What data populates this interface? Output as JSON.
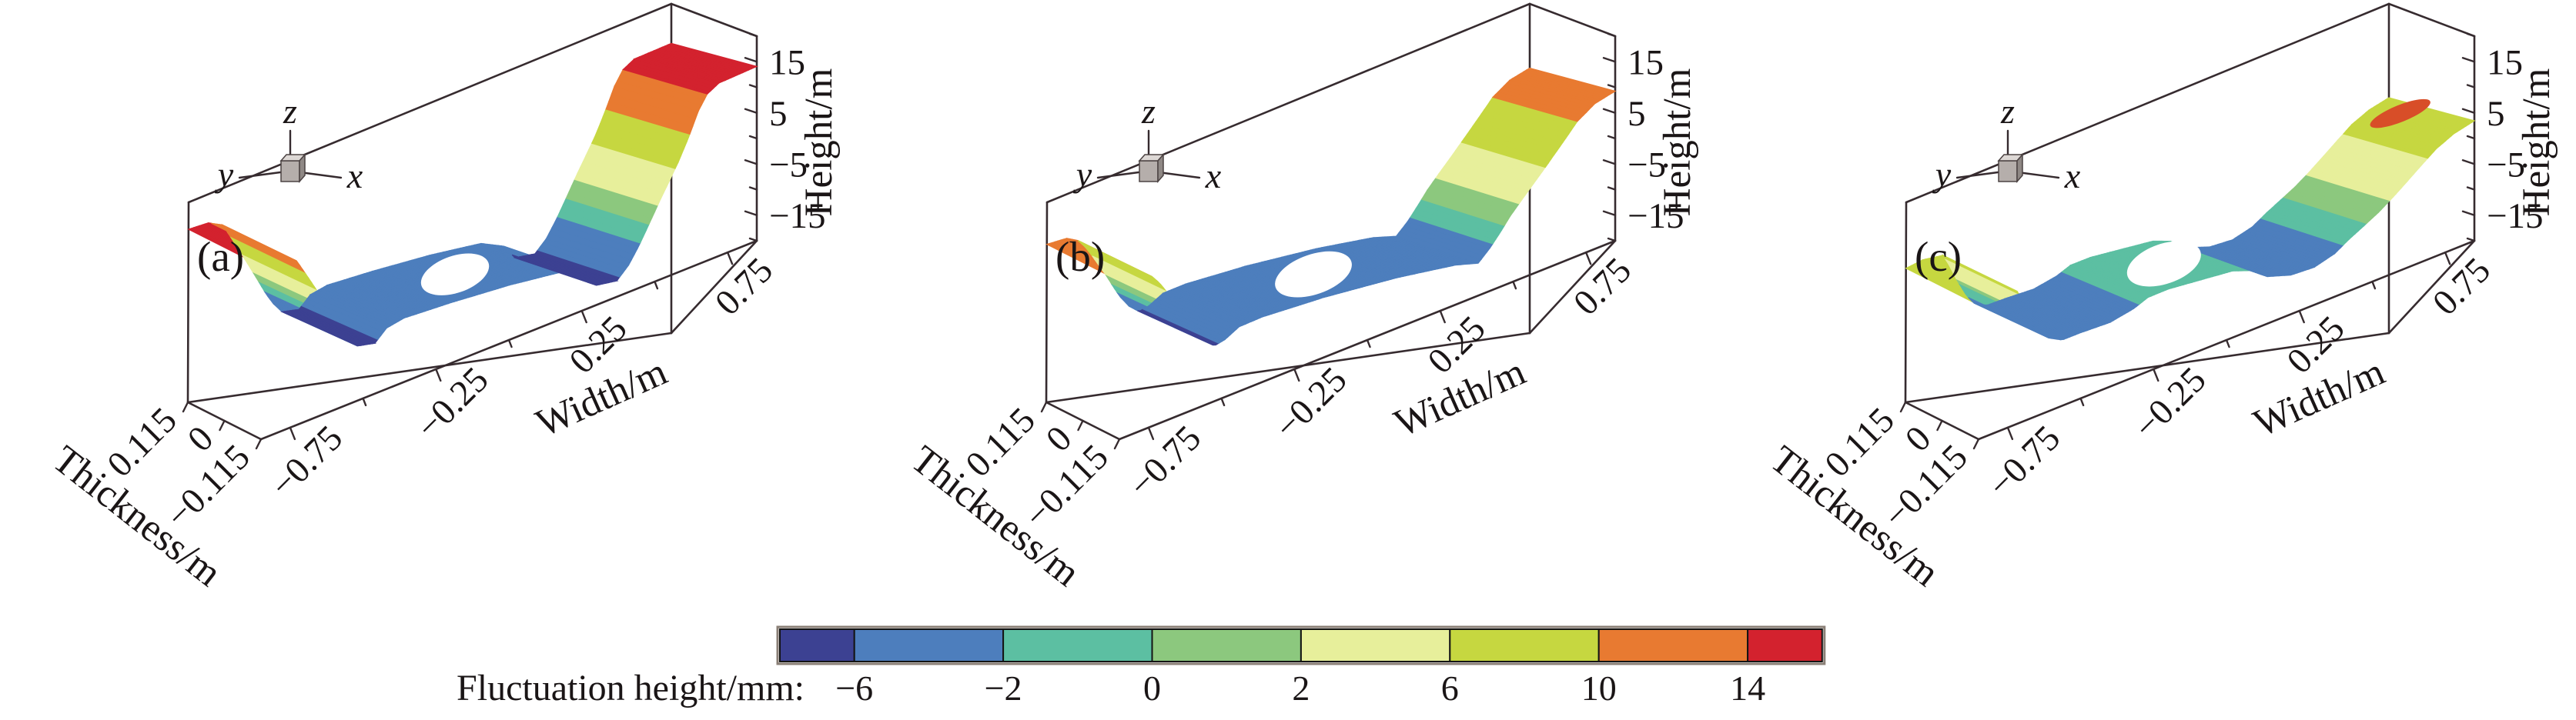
{
  "chart_data": {
    "type": "surface",
    "title": "",
    "panels": [
      {
        "label": "(a)",
        "triad": {
          "x": "x",
          "y": "y",
          "z": "z"
        },
        "axes": {
          "height": {
            "title": "Height/m",
            "tick_labels": [
              "15",
              "5",
              "−5",
              "−15"
            ],
            "tick_values": [
              15,
              5,
              -5,
              -15
            ],
            "minor_values": [
              20,
              10,
              0,
              -10,
              -20
            ],
            "range": [
              -20,
              20
            ]
          },
          "width": {
            "title": "Width/m",
            "tick_labels": [
              "−0.75",
              "−0.25",
              "0.25",
              "0.75"
            ],
            "tick_values": [
              -0.75,
              -0.25,
              0.25,
              0.75
            ],
            "minor_values": [
              -0.5,
              0,
              0.5
            ],
            "range": [
              -0.85,
              0.85
            ]
          },
          "thickness": {
            "title": "Thickness/m",
            "tick_labels": [
              "0.115",
              "0",
              "−0.115"
            ],
            "tick_values": [
              0.115,
              0,
              -0.115
            ],
            "range": [
              0.115,
              -0.115
            ]
          }
        },
        "profile_w_vs_fluct_mm": [
          [
            -0.85,
            14.6
          ],
          [
            -0.78,
            14.4
          ],
          [
            -0.73,
            13
          ],
          [
            -0.71,
            11
          ],
          [
            -0.69,
            9
          ],
          [
            -0.67,
            7
          ],
          [
            -0.655,
            5.5
          ],
          [
            -0.64,
            4
          ],
          [
            -0.625,
            2.5
          ],
          [
            -0.61,
            1
          ],
          [
            -0.595,
            -0.5
          ],
          [
            -0.575,
            -2.5
          ],
          [
            -0.55,
            -4.5
          ],
          [
            -0.52,
            -6.3
          ],
          [
            -0.46,
            -6.6
          ],
          [
            -0.42,
            -4.5
          ],
          [
            -0.36,
            -3.6
          ],
          [
            -0.2,
            -3.2
          ],
          [
            0,
            -3
          ],
          [
            0.18,
            -3.2
          ],
          [
            0.26,
            -4.4
          ],
          [
            0.3,
            -6.4
          ],
          [
            0.37,
            -6.5
          ],
          [
            0.41,
            -4.8
          ],
          [
            0.445,
            -2.6
          ],
          [
            0.47,
            -0.8
          ],
          [
            0.495,
            1
          ],
          [
            0.52,
            2.8
          ],
          [
            0.55,
            4.8
          ],
          [
            0.58,
            6.8
          ],
          [
            0.615,
            9.5
          ],
          [
            0.65,
            12.5
          ],
          [
            0.68,
            14.2
          ],
          [
            0.72,
            15
          ],
          [
            0.85,
            15.2
          ]
        ],
        "hole": {
          "w": -0.05,
          "rx": 46,
          "ry": 24
        },
        "spot": null
      },
      {
        "label": "(b)",
        "triad": {
          "x": "x",
          "y": "y",
          "z": "z"
        },
        "axes": {
          "height": {
            "title": "Height/m",
            "tick_labels": [
              "15",
              "5",
              "−5",
              "−15"
            ],
            "tick_values": [
              15,
              5,
              -5,
              -15
            ],
            "minor_values": [
              20,
              10,
              0,
              -10,
              -20
            ],
            "range": [
              -20,
              20
            ]
          },
          "width": {
            "title": "Width/m",
            "tick_labels": [
              "−0.75",
              "−0.25",
              "0.25",
              "0.75"
            ],
            "tick_values": [
              -0.75,
              -0.25,
              0.25,
              0.75
            ],
            "minor_values": [
              -0.5,
              0,
              0.5
            ],
            "range": [
              -0.85,
              0.85
            ]
          },
          "thickness": {
            "title": "Thickness/m",
            "tick_labels": [
              "0.115",
              "0",
              "−0.115"
            ],
            "tick_values": [
              0.115,
              0,
              -0.115
            ],
            "range": [
              0.115,
              -0.115
            ]
          }
        },
        "profile_w_vs_fluct_mm": [
          [
            -0.85,
            11.6
          ],
          [
            -0.78,
            11.4
          ],
          [
            -0.74,
            10.2
          ],
          [
            -0.715,
            8.5
          ],
          [
            -0.695,
            6.8
          ],
          [
            -0.675,
            5
          ],
          [
            -0.655,
            3.2
          ],
          [
            -0.635,
            1.4
          ],
          [
            -0.615,
            -0.6
          ],
          [
            -0.59,
            -2.8
          ],
          [
            -0.56,
            -4.8
          ],
          [
            -0.525,
            -6.2
          ],
          [
            -0.49,
            -5.6
          ],
          [
            -0.44,
            -4
          ],
          [
            -0.36,
            -3.4
          ],
          [
            -0.15,
            -3
          ],
          [
            0.1,
            -3.1
          ],
          [
            0.3,
            -3.6
          ],
          [
            0.38,
            -4.2
          ],
          [
            0.42,
            -2.6
          ],
          [
            0.455,
            -0.9
          ],
          [
            0.49,
            0.9
          ],
          [
            0.53,
            2.6
          ],
          [
            0.575,
            4.4
          ],
          [
            0.62,
            6.2
          ],
          [
            0.67,
            8.2
          ],
          [
            0.72,
            10.2
          ],
          [
            0.78,
            11.6
          ],
          [
            0.85,
            12.2
          ]
        ],
        "hole": {
          "w": -0.05,
          "rx": 52,
          "ry": 26
        },
        "spot": null
      },
      {
        "label": "(c)",
        "triad": {
          "x": "x",
          "y": "y",
          "z": "z"
        },
        "axes": {
          "height": {
            "title": "Height/m",
            "tick_labels": [
              "15",
              "5",
              "−5",
              "−15"
            ],
            "tick_values": [
              15,
              5,
              -5,
              -15
            ],
            "minor_values": [
              20,
              10,
              0,
              -10,
              -20
            ],
            "range": [
              -20,
              20
            ]
          },
          "width": {
            "title": "Width/m",
            "tick_labels": [
              "−0.75",
              "−0.25",
              "0.25",
              "0.75"
            ],
            "tick_values": [
              -0.75,
              -0.25,
              0.25,
              0.75
            ],
            "minor_values": [
              -0.5,
              0,
              0.5
            ],
            "range": [
              -0.85,
              0.85
            ]
          },
          "thickness": {
            "title": "Thickness/m",
            "tick_labels": [
              "0.115",
              "0",
              "−0.115"
            ],
            "tick_values": [
              0.115,
              0,
              -0.115
            ],
            "range": [
              0.115,
              -0.115
            ]
          }
        },
        "profile_w_vs_fluct_mm": [
          [
            -0.85,
            6.8
          ],
          [
            -0.79,
            7.4
          ],
          [
            -0.72,
            7
          ],
          [
            -0.695,
            4.5
          ],
          [
            -0.675,
            2
          ],
          [
            -0.655,
            0
          ],
          [
            -0.635,
            -2
          ],
          [
            -0.61,
            -3.6
          ],
          [
            -0.565,
            -4.6
          ],
          [
            -0.5,
            -4.2
          ],
          [
            -0.4,
            -3.8
          ],
          [
            -0.32,
            -2.6
          ],
          [
            -0.27,
            -1.4
          ],
          [
            -0.2,
            -1
          ],
          [
            0.02,
            -1.1
          ],
          [
            0.08,
            -1.8
          ],
          [
            0.14,
            -3.4
          ],
          [
            0.22,
            -4.1
          ],
          [
            0.3,
            -3.9
          ],
          [
            0.37,
            -2.8
          ],
          [
            0.42,
            -1.4
          ],
          [
            0.47,
            -0.2
          ],
          [
            0.52,
            1
          ],
          [
            0.57,
            2.4
          ],
          [
            0.62,
            3.9
          ],
          [
            0.67,
            5.4
          ],
          [
            0.72,
            6.8
          ],
          [
            0.78,
            7.9
          ],
          [
            0.85,
            8.6
          ]
        ],
        "hole": {
          "w": -0.08,
          "rx": 50,
          "ry": 26
        },
        "spot": {
          "w": 0.8,
          "fluct_mm": 14.5,
          "color": "#d84e28"
        }
      }
    ],
    "legend": {
      "title": "Fluctuation height/mm:",
      "boundary_labels": [
        "−6",
        "−2",
        "0",
        "2",
        "6",
        "10",
        "14"
      ],
      "boundary_values": [
        -6,
        -2,
        0,
        2,
        6,
        10,
        14
      ],
      "segment_colors": [
        "#3c4192",
        "#4d7ebd",
        "#5cbfa2",
        "#8cc87e",
        "#e7ef9b",
        "#c6d740",
        "#e87a31",
        "#d3222e"
      ],
      "segment_relative_widths": [
        0.5,
        1,
        1,
        1,
        1,
        1,
        1,
        0.5
      ],
      "position": "bottom-center"
    }
  }
}
